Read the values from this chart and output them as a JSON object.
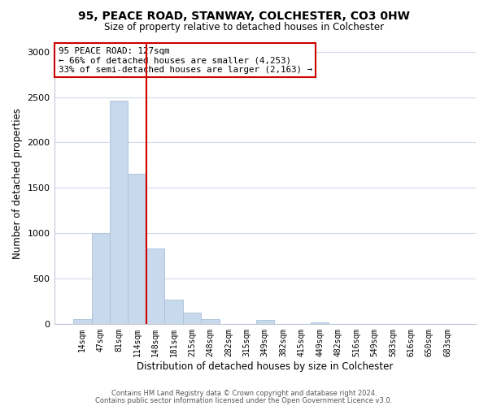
{
  "title": "95, PEACE ROAD, STANWAY, COLCHESTER, CO3 0HW",
  "subtitle": "Size of property relative to detached houses in Colchester",
  "xlabel": "Distribution of detached houses by size in Colchester",
  "ylabel": "Number of detached properties",
  "bar_labels": [
    "14sqm",
    "47sqm",
    "81sqm",
    "114sqm",
    "148sqm",
    "181sqm",
    "215sqm",
    "248sqm",
    "282sqm",
    "315sqm",
    "349sqm",
    "382sqm",
    "415sqm",
    "449sqm",
    "482sqm",
    "516sqm",
    "549sqm",
    "583sqm",
    "616sqm",
    "650sqm",
    "683sqm"
  ],
  "bar_values": [
    55,
    1000,
    2460,
    1650,
    830,
    270,
    120,
    55,
    0,
    0,
    40,
    0,
    0,
    20,
    0,
    0,
    0,
    0,
    0,
    0,
    0
  ],
  "bar_color": "#c9d9ed",
  "bar_edge_color": "#a8c0d8",
  "vline_color": "#cc0000",
  "ylim": [
    0,
    3100
  ],
  "yticks": [
    0,
    500,
    1000,
    1500,
    2000,
    2500,
    3000
  ],
  "annotation_line1": "95 PEACE ROAD: 127sqm",
  "annotation_line2": "← 66% of detached houses are smaller (4,253)",
  "annotation_line3": "33% of semi-detached houses are larger (2,163) →",
  "annotation_box_color": "#ffffff",
  "annotation_box_edge": "#cc0000",
  "footer_line1": "Contains HM Land Registry data © Crown copyright and database right 2024.",
  "footer_line2": "Contains public sector information licensed under the Open Government Licence v3.0.",
  "background_color": "#ffffff",
  "grid_color": "#d0dae8",
  "title_fontsize": 10,
  "subtitle_fontsize": 8.5,
  "tick_fontsize": 7,
  "ylabel_fontsize": 8.5,
  "xlabel_fontsize": 8.5
}
